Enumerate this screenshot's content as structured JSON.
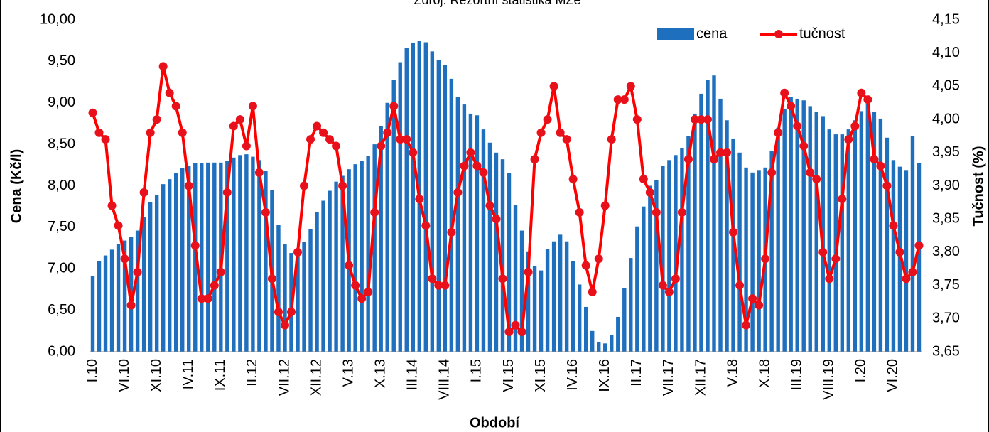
{
  "chart_data": {
    "type": "bar_line",
    "subtitle": "Zdroj: Rezortní statistika MZe",
    "x_label": "Období",
    "y_label": "Cena (Kč/l)",
    "y2_label": "Tučnost (%)",
    "legend": "upper right",
    "grid": false,
    "categories": [
      "I.10",
      null,
      null,
      null,
      null,
      "VI.10",
      null,
      null,
      null,
      null,
      "XI.10",
      null,
      null,
      null,
      null,
      "IV.11",
      null,
      null,
      null,
      null,
      "IX.11",
      null,
      null,
      null,
      null,
      "II.12",
      null,
      null,
      null,
      null,
      "VII.12",
      null,
      null,
      null,
      null,
      "XII.12",
      null,
      null,
      null,
      null,
      "V.13",
      null,
      null,
      null,
      null,
      "X.13",
      null,
      null,
      null,
      null,
      "III.14",
      null,
      null,
      null,
      null,
      "VIII.14",
      null,
      null,
      null,
      null,
      "I.15",
      null,
      null,
      null,
      null,
      "VI.15",
      null,
      null,
      null,
      null,
      "XI.15",
      null,
      null,
      null,
      null,
      "IV.16",
      null,
      null,
      null,
      null,
      "IX.16",
      null,
      null,
      null,
      null,
      "II.17",
      null,
      null,
      null,
      null,
      "VII.17",
      null,
      null,
      null,
      null,
      "XII.17",
      null,
      null,
      null,
      null,
      "V.18",
      null,
      null,
      null,
      null,
      "X.18",
      null,
      null,
      null,
      null,
      "III.19",
      null,
      null,
      null,
      null,
      "VIII.19",
      null,
      null,
      null,
      null,
      "I.20",
      null,
      null,
      null,
      null,
      "VI.20",
      null,
      null,
      null,
      null
    ],
    "series": [
      {
        "name": "cena",
        "type": "bar",
        "color": "#1f6fbf",
        "values": [
          6.91,
          7.09,
          7.16,
          7.23,
          7.3,
          7.34,
          7.38,
          7.46,
          7.62,
          7.8,
          7.89,
          8.02,
          8.08,
          8.15,
          8.21,
          8.24,
          8.27,
          8.27,
          8.28,
          8.28,
          8.28,
          8.3,
          8.34,
          8.37,
          8.38,
          8.35,
          8.31,
          8.18,
          7.95,
          7.53,
          7.3,
          7.19,
          7.22,
          7.32,
          7.48,
          7.68,
          7.82,
          7.94,
          8.05,
          8.12,
          8.2,
          8.26,
          8.3,
          8.36,
          8.5,
          8.72,
          9.0,
          9.28,
          9.49,
          9.66,
          9.72,
          9.75,
          9.73,
          9.62,
          9.52,
          9.46,
          9.29,
          9.07,
          8.98,
          8.87,
          8.85,
          8.68,
          8.52,
          8.4,
          8.32,
          8.15,
          7.77,
          7.46,
          7.21,
          7.03,
          6.98,
          7.24,
          7.33,
          7.41,
          7.33,
          7.09,
          6.81,
          6.54,
          6.25,
          6.12,
          6.1,
          6.2,
          6.42,
          6.77,
          7.13,
          7.51,
          7.75,
          8.0,
          8.07,
          8.24,
          8.31,
          8.37,
          8.45,
          8.6,
          8.87,
          9.11,
          9.28,
          9.33,
          9.05,
          8.79,
          8.57,
          8.4,
          8.22,
          8.16,
          8.19,
          8.22,
          8.42,
          8.7,
          8.93,
          9.07,
          9.05,
          9.03,
          8.96,
          8.89,
          8.84,
          8.68,
          8.62,
          8.62,
          8.68,
          8.79,
          8.9,
          8.99,
          8.89,
          8.81,
          8.58,
          8.31,
          8.23,
          8.19,
          8.6,
          8.27
        ]
      },
      {
        "name": "tučnost",
        "type": "line",
        "axis": "y2",
        "color": "#ff0000",
        "values": [
          4.01,
          3.98,
          3.97,
          3.87,
          3.84,
          3.79,
          3.72,
          3.77,
          3.89,
          3.98,
          4.0,
          4.08,
          4.04,
          4.02,
          3.98,
          3.9,
          3.81,
          3.73,
          3.73,
          3.75,
          3.77,
          3.89,
          3.99,
          4.0,
          3.96,
          4.02,
          3.92,
          3.86,
          3.76,
          3.71,
          3.69,
          3.71,
          3.8,
          3.9,
          3.97,
          3.99,
          3.98,
          3.97,
          3.96,
          3.9,
          3.78,
          3.75,
          3.73,
          3.74,
          3.86,
          3.96,
          3.98,
          4.02,
          3.97,
          3.97,
          3.95,
          3.88,
          3.84,
          3.76,
          3.75,
          3.75,
          3.83,
          3.89,
          3.93,
          3.95,
          3.93,
          3.92,
          3.87,
          3.85,
          3.76,
          3.68,
          3.69,
          3.68,
          3.77,
          3.94,
          3.98,
          4.0,
          4.05,
          3.98,
          3.97,
          3.91,
          3.86,
          3.78,
          3.74,
          3.79,
          3.87,
          3.97,
          4.03,
          4.03,
          4.05,
          4.0,
          3.91,
          3.89,
          3.86,
          3.75,
          3.74,
          3.76,
          3.86,
          3.94,
          4.0,
          4.0,
          4.0,
          3.94,
          3.95,
          3.95,
          3.83,
          3.75,
          3.69,
          3.73,
          3.72,
          3.79,
          3.92,
          3.98,
          4.04,
          4.02,
          3.99,
          3.96,
          3.92,
          3.91,
          3.8,
          3.76,
          3.79,
          3.88,
          3.97,
          3.99,
          4.04,
          4.03,
          3.94,
          3.93,
          3.9,
          3.84,
          3.8,
          3.76,
          3.77,
          3.81
        ]
      }
    ],
    "ylim": [
      6,
      10
    ],
    "yticks": [
      {
        "value": 6,
        "label": "6,00"
      },
      {
        "value": 6.5,
        "label": "6,50"
      },
      {
        "value": 7,
        "label": "7,00"
      },
      {
        "value": 7.5,
        "label": "7,50"
      },
      {
        "value": 8,
        "label": "8,00"
      },
      {
        "value": 8.5,
        "label": "8,50"
      },
      {
        "value": 9,
        "label": "9,00"
      },
      {
        "value": 9.5,
        "label": "9,50"
      },
      {
        "value": 10,
        "label": "10,00"
      }
    ],
    "y2lim": [
      3.65,
      4.15
    ],
    "y2ticks": [
      {
        "value": 3.65,
        "label": "3,65"
      },
      {
        "value": 3.7,
        "label": "3,70"
      },
      {
        "value": 3.75,
        "label": "3,75"
      },
      {
        "value": 3.8,
        "label": "3,80"
      },
      {
        "value": 3.85,
        "label": "3,85"
      },
      {
        "value": 3.9,
        "label": "3,90"
      },
      {
        "value": 3.95,
        "label": "3,95"
      },
      {
        "value": 4,
        "label": "4,00"
      },
      {
        "value": 4.05,
        "label": "4,05"
      },
      {
        "value": 4.1,
        "label": "4,10"
      },
      {
        "value": 4.15,
        "label": "4,15"
      }
    ]
  }
}
